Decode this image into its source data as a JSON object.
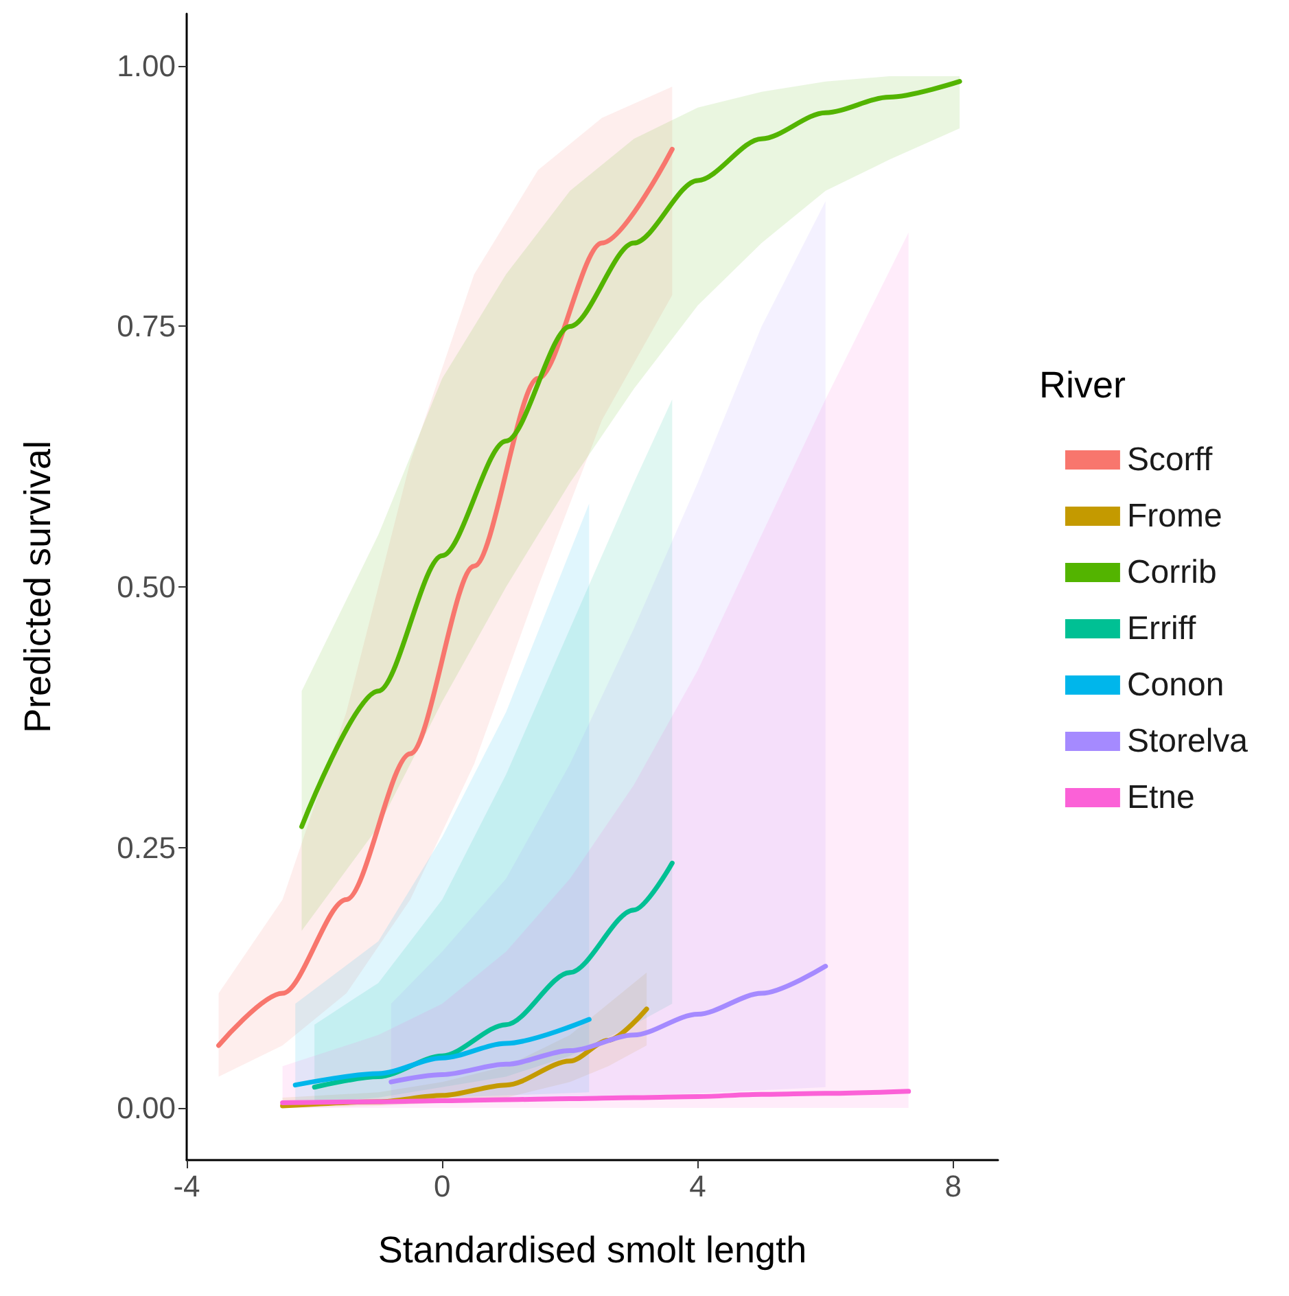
{
  "chart_data": {
    "type": "line",
    "xlabel": "Standardised smolt length",
    "ylabel": "Predicted survival",
    "legend_title": "River",
    "legend": "right",
    "marker": "none",
    "line_style": "solid",
    "xlim": [
      -4,
      8.7
    ],
    "xticks": [
      -4,
      0,
      4,
      8
    ],
    "ylim": [
      -0.05,
      1.05
    ],
    "yticks": [
      {
        "value": 0,
        "label": "0.00"
      },
      {
        "value": 0.25,
        "label": "0.25"
      },
      {
        "value": 0.5,
        "label": "0.50"
      },
      {
        "value": 0.75,
        "label": "0.75"
      },
      {
        "value": 1,
        "label": "1.00"
      }
    ],
    "series": [
      {
        "name": "Scorff",
        "color": "#f8766d",
        "x": [
          -3.5,
          -2.5,
          -1.5,
          -0.5,
          0.5,
          1.5,
          2.5,
          3.6
        ],
        "values": [
          0.06,
          0.11,
          0.2,
          0.34,
          0.52,
          0.7,
          0.83,
          0.92
        ],
        "lower": [
          0.03,
          0.06,
          0.11,
          0.2,
          0.33,
          0.5,
          0.66,
          0.78
        ],
        "upper": [
          0.11,
          0.2,
          0.38,
          0.62,
          0.8,
          0.9,
          0.95,
          0.98
        ]
      },
      {
        "name": "Frome",
        "color": "#c49a00",
        "x": [
          -2.5,
          -1,
          0,
          1,
          2,
          2.6,
          3.2
        ],
        "values": [
          0.002,
          0.006,
          0.012,
          0.022,
          0.045,
          0.065,
          0.095
        ],
        "lower": [
          0,
          0.002,
          0.005,
          0.01,
          0.025,
          0.04,
          0.06
        ],
        "upper": [
          0.01,
          0.015,
          0.025,
          0.04,
          0.07,
          0.1,
          0.13
        ]
      },
      {
        "name": "Corrib",
        "color": "#53b400",
        "x": [
          -2.2,
          -1,
          0,
          1,
          2,
          3,
          4,
          5,
          6,
          7,
          8.1
        ],
        "values": [
          0.27,
          0.4,
          0.53,
          0.64,
          0.75,
          0.83,
          0.89,
          0.93,
          0.955,
          0.97,
          0.985
        ],
        "lower": [
          0.17,
          0.27,
          0.39,
          0.5,
          0.6,
          0.69,
          0.77,
          0.83,
          0.88,
          0.91,
          0.94
        ],
        "upper": [
          0.4,
          0.55,
          0.7,
          0.8,
          0.88,
          0.93,
          0.96,
          0.975,
          0.985,
          0.99,
          0.99
        ]
      },
      {
        "name": "Erriff",
        "color": "#00c094",
        "x": [
          -2,
          -1,
          0,
          1,
          2,
          3,
          3.6
        ],
        "values": [
          0.02,
          0.03,
          0.05,
          0.08,
          0.13,
          0.19,
          0.235
        ],
        "lower": [
          0.005,
          0.01,
          0.02,
          0.03,
          0.05,
          0.08,
          0.1
        ],
        "upper": [
          0.08,
          0.12,
          0.2,
          0.32,
          0.46,
          0.6,
          0.68
        ]
      },
      {
        "name": "Conon",
        "color": "#00b6eb",
        "x": [
          -2.3,
          -1,
          0,
          1,
          2.3
        ],
        "values": [
          0.022,
          0.033,
          0.048,
          0.062,
          0.085
        ],
        "lower": [
          0.004,
          0.006,
          0.01,
          0.012,
          0.015
        ],
        "upper": [
          0.1,
          0.16,
          0.26,
          0.38,
          0.58
        ]
      },
      {
        "name": "Storelva",
        "color": "#a58aff",
        "x": [
          -0.8,
          0,
          1,
          2,
          3,
          4,
          5,
          6
        ],
        "values": [
          0.025,
          0.032,
          0.042,
          0.055,
          0.07,
          0.09,
          0.11,
          0.136
        ],
        "lower": [
          0.005,
          0.006,
          0.008,
          0.01,
          0.012,
          0.014,
          0.017,
          0.02
        ],
        "upper": [
          0.1,
          0.15,
          0.22,
          0.33,
          0.46,
          0.6,
          0.75,
          0.87
        ]
      },
      {
        "name": "Etne",
        "color": "#fb61d7",
        "x": [
          -2.5,
          -1,
          0,
          1,
          2,
          3,
          4,
          5,
          6,
          7.3
        ],
        "values": [
          0.005,
          0.006,
          0.007,
          0.008,
          0.009,
          0.01,
          0.011,
          0.013,
          0.014,
          0.016
        ],
        "lower": [
          0,
          0,
          0,
          0,
          0,
          0,
          0,
          0,
          0,
          0
        ],
        "upper": [
          0.04,
          0.07,
          0.1,
          0.15,
          0.22,
          0.31,
          0.42,
          0.55,
          0.68,
          0.84
        ]
      }
    ]
  }
}
